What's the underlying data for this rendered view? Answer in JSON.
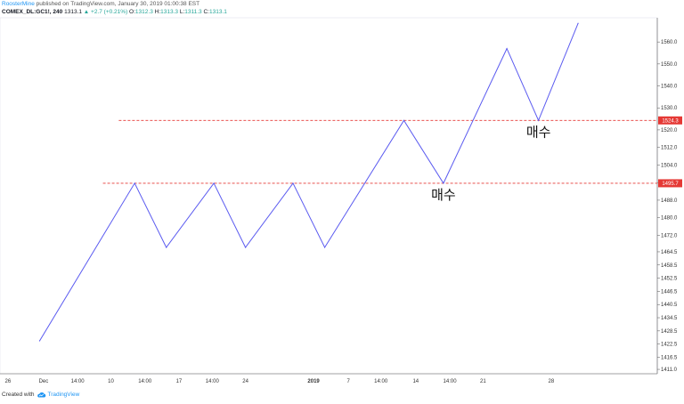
{
  "header": {
    "author": "RoosterMine",
    "published": " published on TradingView.com, January 30, 2019 01:00:38 EST",
    "symbol": "COMEX_DL:GC1!, 240",
    "price": "1313.1",
    "change": "▲ +2.7 (+0.21%)",
    "o_label": "O:",
    "o_value": "1312.3",
    "h_label": "H:",
    "h_value": "1313.3",
    "l_label": "L:",
    "l_value": "1311.3",
    "c_label": "C:",
    "c_value": "1313.1"
  },
  "footer": {
    "created_with": "Created with",
    "brand": "TradingView",
    "icon": "tradingview-cloud-icon"
  },
  "colors": {
    "line": "#5b5bf0",
    "level": "#e53935",
    "axis_text": "#333333",
    "badge_text": "#ffffff"
  },
  "chart_data": {
    "type": "line",
    "x_ticks": [
      {
        "label": "26",
        "x": 0
      },
      {
        "label": "Dec",
        "x": 4.5
      },
      {
        "label": "14:00",
        "x": 8.8
      },
      {
        "label": "10",
        "x": 13
      },
      {
        "label": "14:00",
        "x": 17.3
      },
      {
        "label": "17",
        "x": 21.6
      },
      {
        "label": "14:00",
        "x": 25.8
      },
      {
        "label": "24",
        "x": 30
      },
      {
        "label": "2019",
        "x": 38.6
      },
      {
        "label": "7",
        "x": 43
      },
      {
        "label": "14:00",
        "x": 47.1
      },
      {
        "label": "14",
        "x": 51.5
      },
      {
        "label": "14:00",
        "x": 55.8
      },
      {
        "label": "21",
        "x": 60
      },
      {
        "label": "28",
        "x": 68.6
      }
    ],
    "y_ticks": [
      1411.0,
      1416.5,
      1422.5,
      1428.5,
      1434.5,
      1440.5,
      1446.5,
      1452.5,
      1458.5,
      1464.5,
      1472.0,
      1480.0,
      1488.0,
      1496.0,
      1504.0,
      1512.0,
      1520.0,
      1530.0,
      1540.0,
      1550.0,
      1560.0
    ],
    "ylim": [
      1409,
      1571
    ],
    "series": [
      {
        "values": [
          {
            "x": 4,
            "y": 1424.0
          },
          {
            "x": 16,
            "y": 1495.7
          },
          {
            "x": 20,
            "y": 1466.5
          },
          {
            "x": 26,
            "y": 1495.7
          },
          {
            "x": 30,
            "y": 1466.5
          },
          {
            "x": 36,
            "y": 1495.7
          },
          {
            "x": 40,
            "y": 1466.5
          },
          {
            "x": 50,
            "y": 1524.3
          },
          {
            "x": 55,
            "y": 1495.7
          },
          {
            "x": 63,
            "y": 1557.0
          },
          {
            "x": 67,
            "y": 1524.3
          },
          {
            "x": 72,
            "y": 1568.5
          }
        ]
      }
    ],
    "levels": [
      {
        "value": 1524.3,
        "label": "1524.3",
        "x_start": 14
      },
      {
        "value": 1495.7,
        "label": "1495.7",
        "x_start": 12
      }
    ],
    "annotations": [
      {
        "text": "매수",
        "x": 55,
        "y": 1495.7
      },
      {
        "text": "매수",
        "x": 67,
        "y": 1524.3
      }
    ],
    "xlim": [
      -1,
      82
    ]
  }
}
